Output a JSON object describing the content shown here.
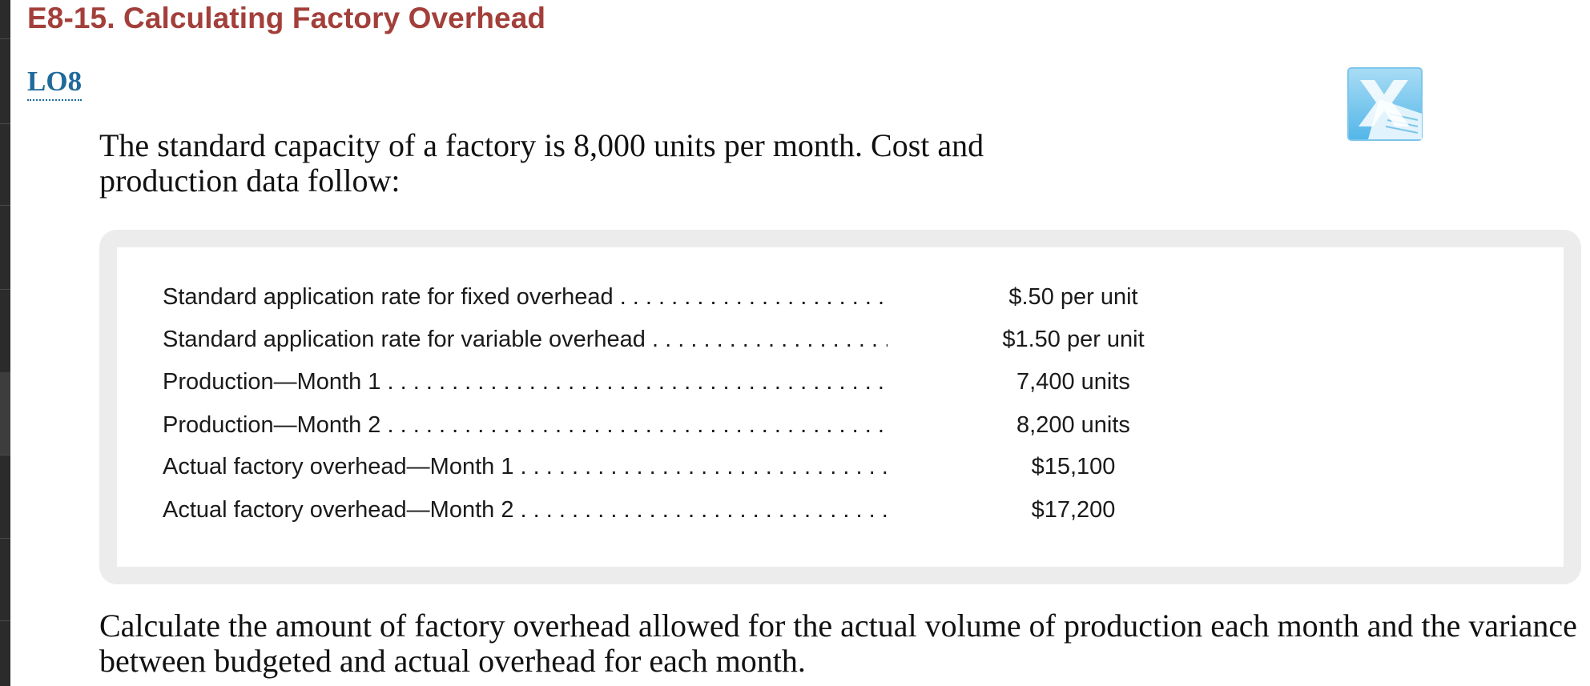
{
  "exercise": {
    "title": "E8-15. Calculating Factory Overhead",
    "learning_objective": "LO8"
  },
  "intro_text": "The standard capacity of a factory is 8,000 units per month. Cost and production data follow:",
  "cost_data": {
    "rows": [
      {
        "label": "Standard application rate for fixed overhead",
        "value": "$.50 per unit"
      },
      {
        "label": "Standard application rate for variable overhead",
        "value": "$1.50 per unit"
      },
      {
        "label": "Production—Month 1",
        "value": "7,400 units"
      },
      {
        "label": "Production—Month 2",
        "value": "8,200 units"
      },
      {
        "label": "Actual factory overhead—Month 1",
        "value": "$15,100"
      },
      {
        "label": "Actual factory overhead—Month 2",
        "value": "$17,200"
      }
    ]
  },
  "question_text": "Calculate the amount of factory overhead allowed for the actual volume of production each month and the variance between budgeted and actual overhead for each month.",
  "icons": {
    "spreadsheet": "excel-spreadsheet-icon"
  },
  "colors": {
    "title": "#a33f3a",
    "link": "#1f6a9b",
    "box_border": "#ececec"
  }
}
